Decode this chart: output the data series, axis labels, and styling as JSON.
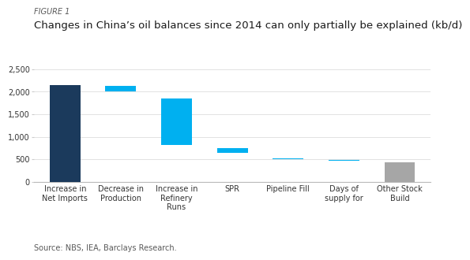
{
  "figure_label": "FIGURE 1",
  "title": "Changes in China’s oil balances since 2014 can only partially be explained (kb/d)",
  "source": "Source: NBS, IEA, Barclays Research.",
  "categories": [
    "Increase in\nNet Imports",
    "Decrease in\nProduction",
    "Increase in\nRefinery\nRuns",
    "SPR",
    "Pipeline Fill",
    "Days of\nsupply for",
    "Other Stock\nBuild"
  ],
  "bar_bottoms": [
    0,
    2000,
    825,
    650,
    510,
    465,
    0
  ],
  "bar_tops": [
    2150,
    2130,
    1850,
    750,
    530,
    485,
    440
  ],
  "bar_colors": [
    "#1b3a5c",
    "#00b0f0",
    "#00b0f0",
    "#00b0f0",
    "#00b0f0",
    "#00b0f0",
    "#a6a6a6"
  ],
  "ylim": [
    0,
    2500
  ],
  "yticks": [
    0,
    500,
    1000,
    1500,
    2000,
    2500
  ],
  "background_color": "#ffffff",
  "figure_label_color": "#595959",
  "title_color": "#1a1a1a",
  "source_color": "#595959",
  "figure_label_fontsize": 7,
  "title_fontsize": 9.5,
  "tick_label_fontsize": 7,
  "source_fontsize": 7,
  "bar_width": 0.55
}
